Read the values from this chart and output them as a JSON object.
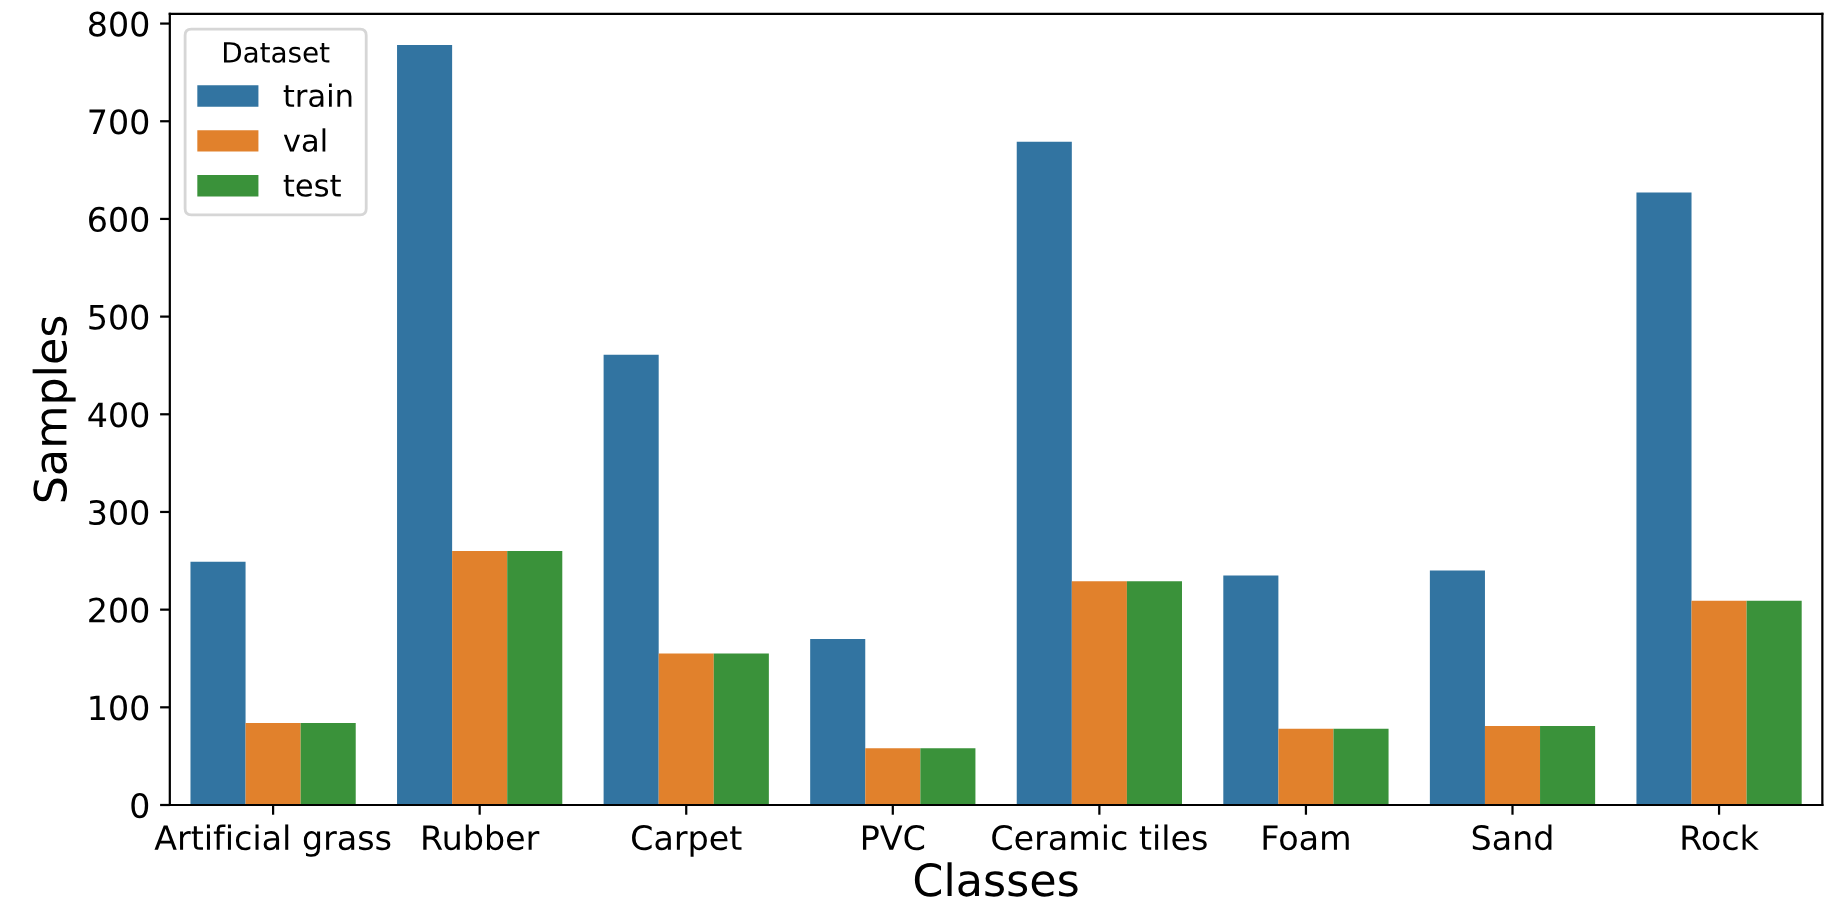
{
  "chart_data": {
    "type": "bar",
    "xlabel": "Classes",
    "ylabel": "Samples",
    "legend_title": "Dataset",
    "categories": [
      "Artificial grass",
      "Rubber",
      "Carpet",
      "PVC",
      "Ceramic tiles",
      "Foam",
      "Sand",
      "Rock"
    ],
    "series": [
      {
        "name": "train",
        "color": "#3274a1",
        "values": [
          249,
          778,
          461,
          170,
          679,
          235,
          240,
          627
        ]
      },
      {
        "name": "val",
        "color": "#e1812c",
        "values": [
          84,
          260,
          155,
          58,
          229,
          78,
          81,
          209
        ]
      },
      {
        "name": "test",
        "color": "#3a923a",
        "values": [
          84,
          260,
          155,
          58,
          229,
          78,
          81,
          209
        ]
      }
    ],
    "ylim": [
      0,
      810
    ],
    "yticks": [
      0,
      100,
      200,
      300,
      400,
      500,
      600,
      700,
      800
    ],
    "grid": false,
    "legend": "top left"
  }
}
